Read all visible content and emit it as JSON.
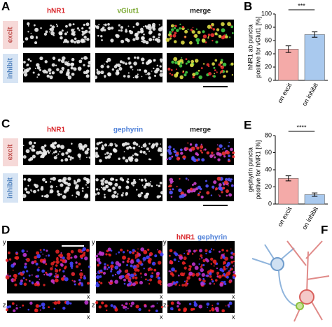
{
  "panel_labels": [
    "A",
    "B",
    "C",
    "D",
    "E",
    "F"
  ],
  "panel_a": {
    "column_labels": [
      "hNR1",
      "vGlut1",
      "merge"
    ],
    "row_labels": [
      "excit",
      "inhibit"
    ]
  },
  "panel_c": {
    "column_labels": [
      "hNR1",
      "gephyrin",
      "merge"
    ],
    "row_labels": [
      "excit",
      "inhibit"
    ]
  },
  "panel_d": {
    "legend": [
      "hNR1",
      "gephyrin"
    ],
    "axis_labels": [
      "y",
      "x",
      "z"
    ]
  },
  "chart_data": [
    {
      "type": "bar",
      "ylabel": [
        "hNR1 ab puncta",
        "positive for vGlut1 [%]"
      ],
      "categories": [
        "on excit",
        "on inhibit"
      ],
      "values": [
        47,
        69
      ],
      "errors": [
        5,
        4
      ],
      "colors": [
        "#f4aaa8",
        "#a9c9ee"
      ],
      "ylim": [
        0,
        100
      ],
      "yticks": [
        0,
        20,
        40,
        60,
        80,
        100
      ],
      "significance": "***"
    },
    {
      "type": "bar",
      "ylabel": [
        "gephyrin puncta",
        "positive for hNR1 [%]"
      ],
      "categories": [
        "on excit",
        "on inhibit"
      ],
      "values": [
        30,
        11
      ],
      "errors": [
        3,
        2
      ],
      "colors": [
        "#f4aaa8",
        "#a9c9ee"
      ],
      "ylim": [
        0,
        80
      ],
      "yticks": [
        0,
        20,
        40,
        60,
        80
      ],
      "significance": "****"
    }
  ]
}
